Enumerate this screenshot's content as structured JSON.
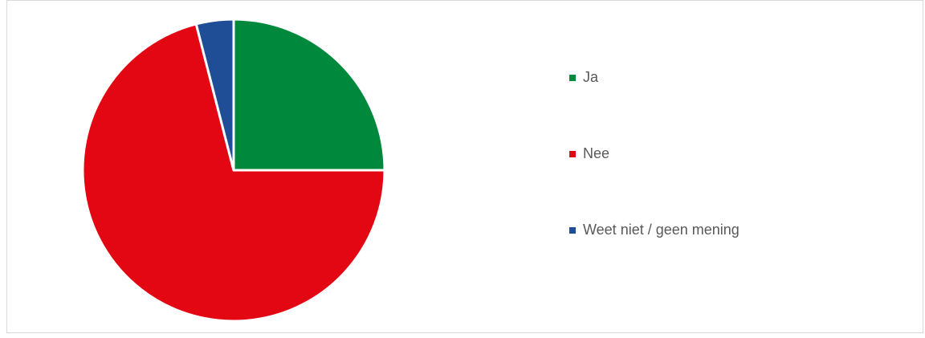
{
  "chart_data": {
    "type": "pie",
    "categories": [
      "Ja",
      "Nee",
      "Weet niet / geen mening"
    ],
    "values": [
      25,
      71,
      4
    ],
    "colors": [
      "#00893d",
      "#e30613",
      "#1f4e96"
    ],
    "legend": "right"
  }
}
